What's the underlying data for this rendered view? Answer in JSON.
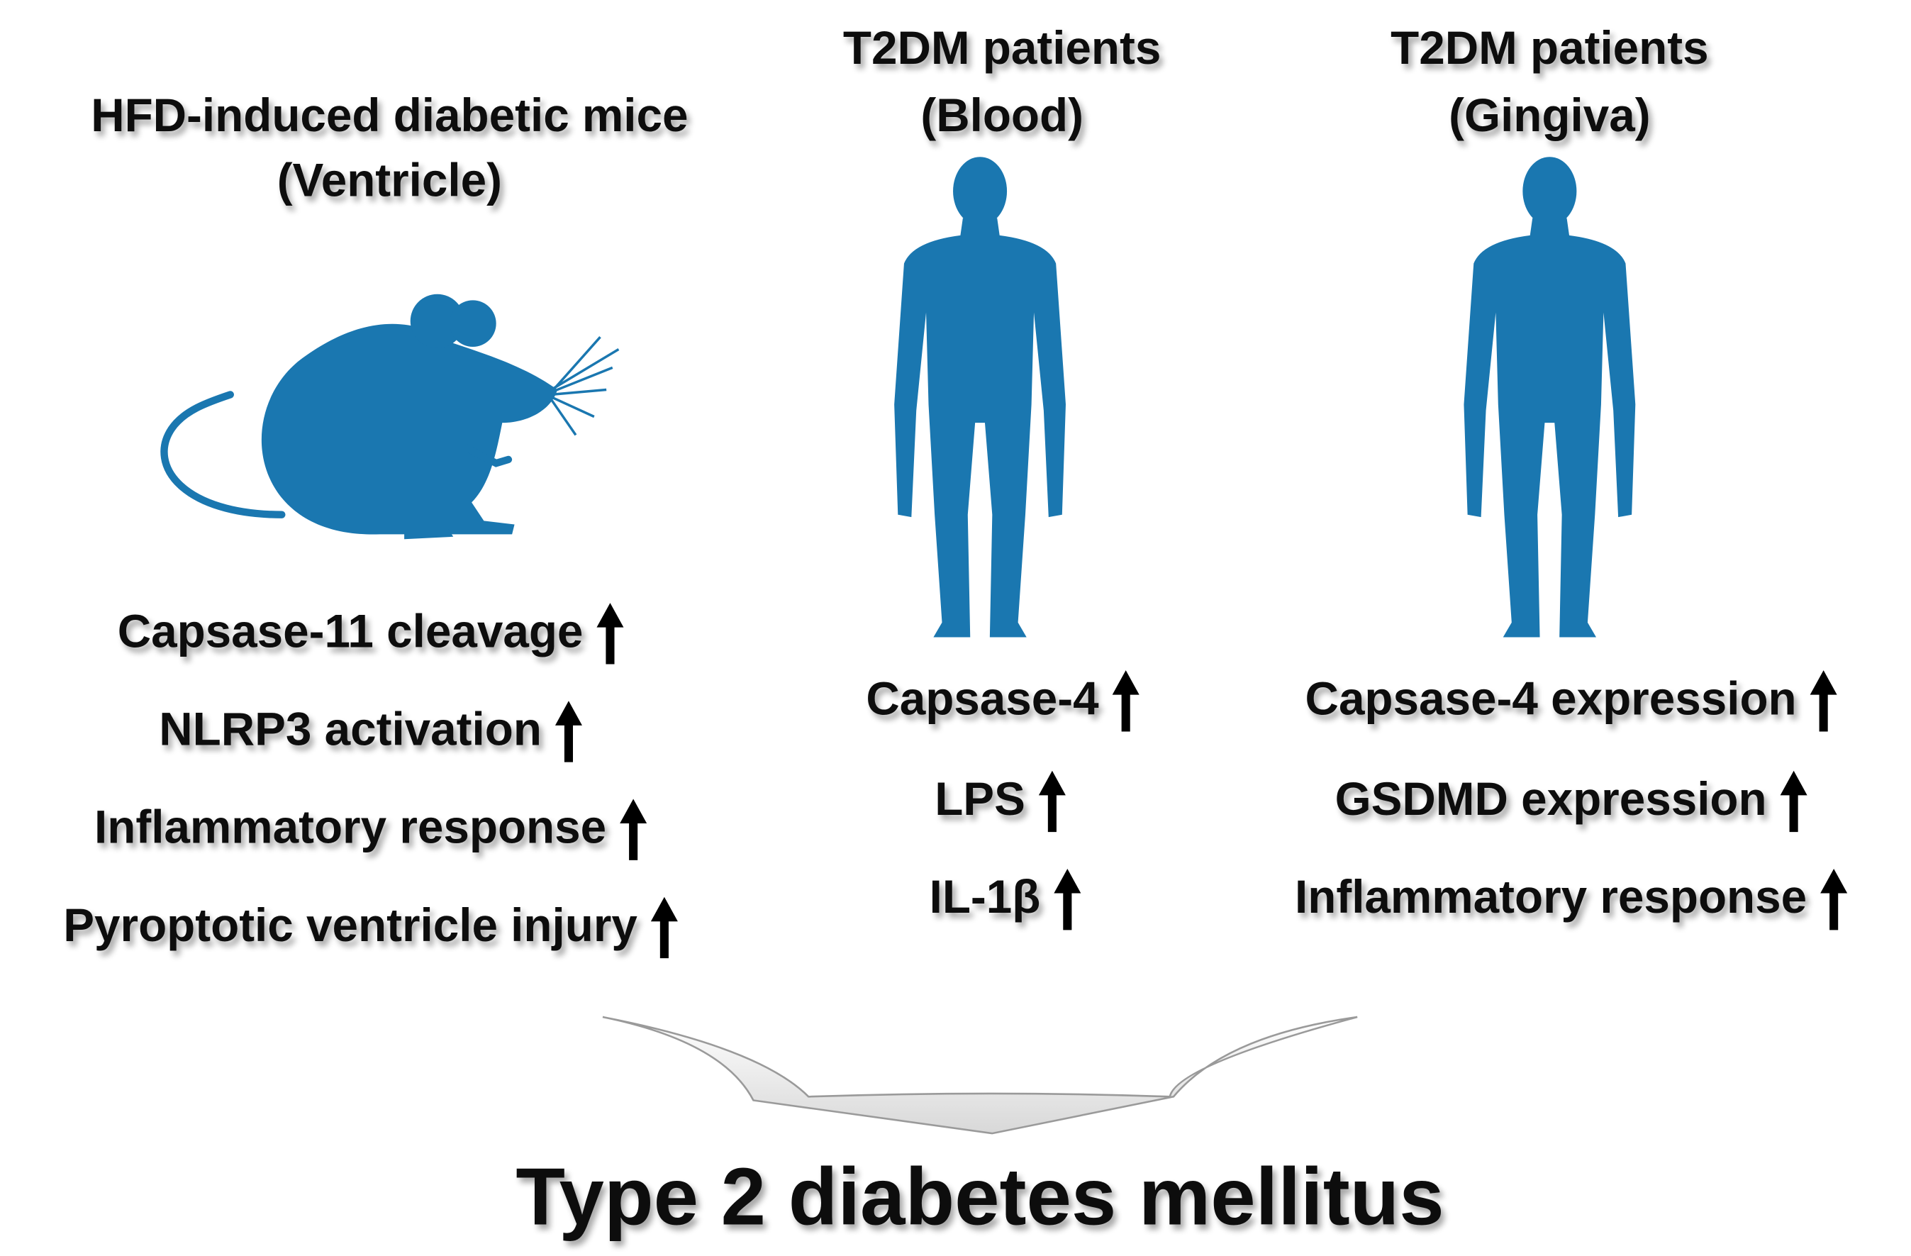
{
  "columns": [
    {
      "title": [
        "HFD-induced diabetic mice",
        "(Ventricle)"
      ],
      "items": [
        "Capsase-11 cleavage",
        "NLRP3 activation",
        "Inflammatory response",
        "Pyroptotic ventricle injury"
      ]
    },
    {
      "title": [
        "T2DM patients",
        "(Blood)"
      ],
      "items": [
        "Capsase-4",
        "LPS",
        "IL-1β"
      ]
    },
    {
      "title": [
        "T2DM patients",
        "(Gingiva)"
      ],
      "items": [
        "Capsase-4 expression",
        "GSDMD expression",
        "Inflammatory response"
      ]
    }
  ],
  "conclusion": "Type 2 diabetes mellitus"
}
